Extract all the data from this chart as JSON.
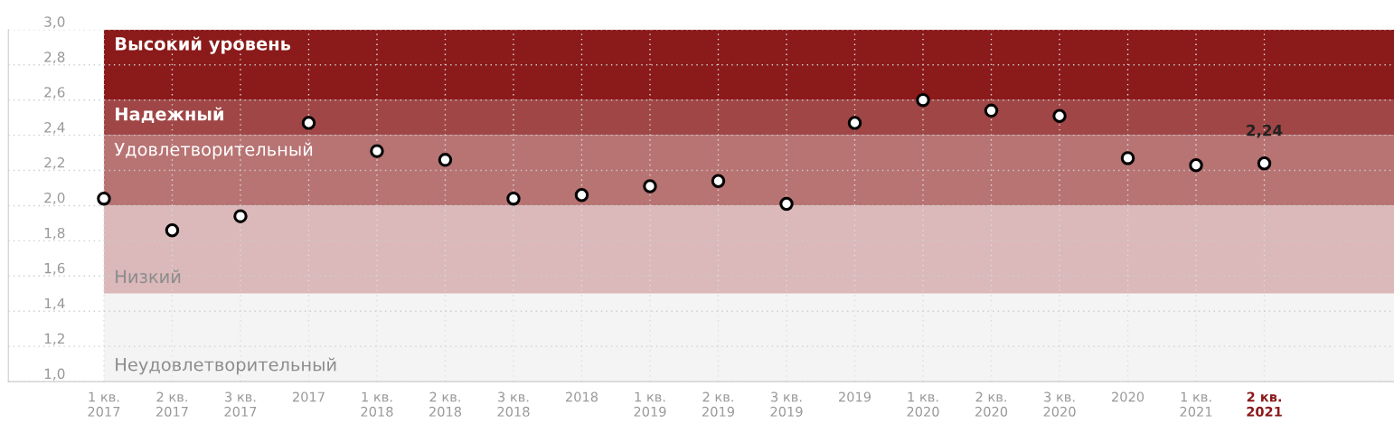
{
  "chart_data": {
    "type": "scatter",
    "categories": [
      "1 кв.\n2017",
      "2 кв.\n2017",
      "3 кв.\n2017",
      "2017",
      "1 кв.\n2018",
      "2 кв.\n2018",
      "3 кв.\n2018",
      "2018",
      "1 кв.\n2019",
      "2 кв.\n2019",
      "3 кв.\n2019",
      "2019",
      "1 кв.\n2020",
      "2 кв.\n2020",
      "3 кв.\n2020",
      "2020",
      "1 кв.\n2021",
      "2 кв.\n2021"
    ],
    "values": [
      2.04,
      1.86,
      1.94,
      2.47,
      2.31,
      2.26,
      2.04,
      2.06,
      2.11,
      2.14,
      2.01,
      2.47,
      2.6,
      2.54,
      2.51,
      2.27,
      2.23,
      2.24
    ],
    "value_labels": [
      null,
      null,
      null,
      null,
      null,
      null,
      null,
      null,
      null,
      null,
      null,
      null,
      null,
      null,
      null,
      null,
      null,
      "2,24"
    ],
    "color": "#ffffff",
    "marker": "circle",
    "ylim": [
      1.0,
      3.0
    ],
    "yticks": [
      {
        "value": 1.0,
        "label": "1,0"
      },
      {
        "value": 1.2,
        "label": "1,2"
      },
      {
        "value": 1.4,
        "label": "1,4"
      },
      {
        "value": 1.6,
        "label": "1,6"
      },
      {
        "value": 1.8,
        "label": "1,8"
      },
      {
        "value": 2.0,
        "label": "2,0"
      },
      {
        "value": 2.2,
        "label": "2,2"
      },
      {
        "value": 2.4,
        "label": "2,4"
      },
      {
        "value": 2.6,
        "label": "2,6"
      },
      {
        "value": 2.8,
        "label": "2,8"
      },
      {
        "value": 3.0,
        "label": "3,0"
      }
    ],
    "grid": true,
    "bands": [
      {
        "axis": "y",
        "from": 2.6,
        "to": 3.0,
        "label": "Высокий уровень",
        "color": "#8b1a1a"
      },
      {
        "axis": "y",
        "from": 2.4,
        "to": 2.6,
        "label": "Надежный",
        "color": "#a04646"
      },
      {
        "axis": "y",
        "from": 2.0,
        "to": 2.4,
        "label": "Удовлетворительный",
        "color": "#b87373"
      },
      {
        "axis": "y",
        "from": 1.5,
        "to": 2.0,
        "label": "Низкий",
        "color": "#dbb8b9"
      },
      {
        "axis": "y",
        "from": 1.0,
        "to": 1.5,
        "label": "Неудовлетворительный",
        "color": "#f4f4f4"
      }
    ]
  }
}
